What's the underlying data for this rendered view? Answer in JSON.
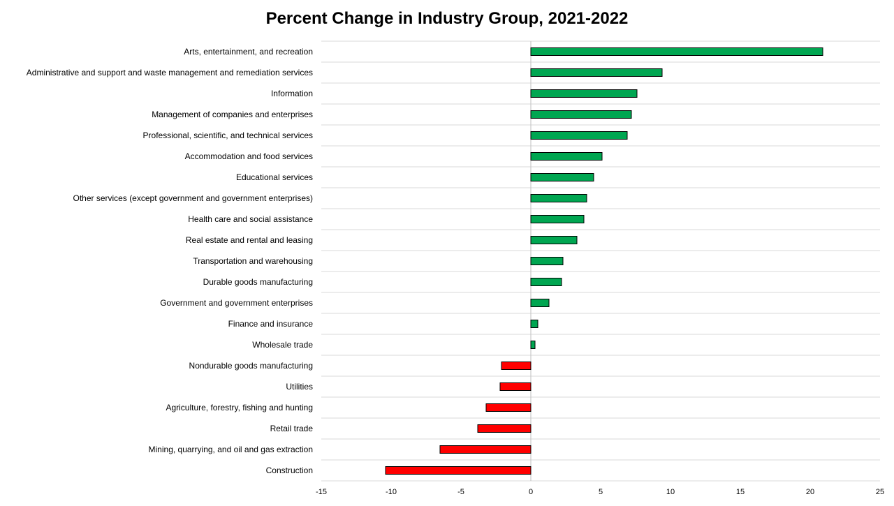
{
  "chart_data": {
    "type": "bar",
    "orientation": "horizontal",
    "title": "Percent Change in Industry Group, 2021-2022",
    "xlabel": "",
    "ylabel": "",
    "xlim": [
      -15,
      25
    ],
    "x_ticks": [
      -15,
      -10,
      -5,
      0,
      5,
      10,
      15,
      20,
      25
    ],
    "grid": true,
    "legend": "none",
    "colors": {
      "positive": "#00a651",
      "negative": "#ff0000",
      "outline": "#000000"
    },
    "categories": [
      "Arts, entertainment, and recreation",
      "Administrative and support and waste management and remediation services",
      "Information",
      "Management of companies and enterprises",
      "Professional, scientific, and technical services",
      "Accommodation and food services",
      "Educational services",
      "Other services (except government and government enterprises)",
      "Health care and social assistance",
      "Real estate and rental and leasing",
      "Transportation and warehousing",
      "Durable goods manufacturing",
      "Government and government enterprises",
      "Finance and insurance",
      "Wholesale trade",
      "Nondurable goods manufacturing",
      "Utilities",
      "Agriculture, forestry, fishing and hunting",
      "Retail trade",
      "Mining, quarrying, and oil and gas extraction",
      "Construction"
    ],
    "values": [
      20.9,
      9.4,
      7.6,
      7.2,
      6.9,
      5.1,
      4.5,
      4.0,
      3.8,
      3.3,
      2.3,
      2.2,
      1.3,
      0.5,
      0.3,
      -2.1,
      -2.2,
      -3.2,
      -3.8,
      -6.5,
      -10.4
    ]
  }
}
